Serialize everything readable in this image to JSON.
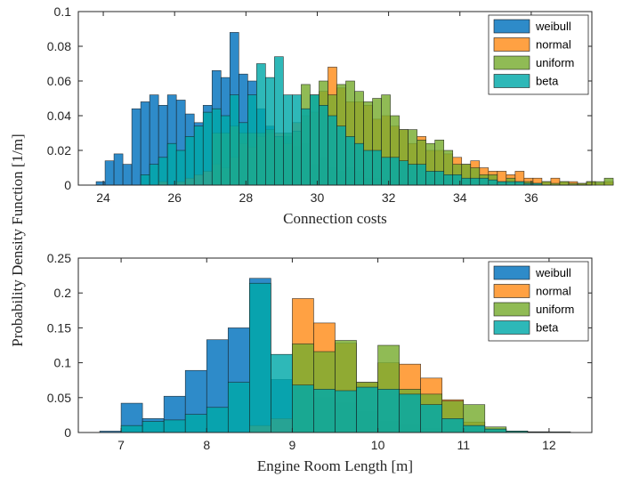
{
  "shared_ylabel": "Probability Density Function [1/m]",
  "colors": {
    "weibull": "#0072BD",
    "normal": "#FF8C1A",
    "uniform": "#77AC30",
    "beta": "#00A8A8"
  },
  "chart_data": [
    {
      "type": "bar",
      "xlabel": "Connection costs",
      "xlim": [
        23.3,
        37.7
      ],
      "ylim": [
        0,
        0.1
      ],
      "xticks": [
        24,
        26,
        28,
        30,
        32,
        34,
        36
      ],
      "yticks": [
        0,
        0.02,
        0.04,
        0.06,
        0.08,
        0.1
      ],
      "legend_position": "top-right",
      "bin_start": 23.8,
      "bin_width": 0.25,
      "series": [
        {
          "name": "weibull",
          "values": [
            0.002,
            0.014,
            0.018,
            0.012,
            0.044,
            0.048,
            0.052,
            0.046,
            0.052,
            0.049,
            0.041,
            0.036,
            0.046,
            0.066,
            0.062,
            0.088,
            0.064,
            0.06,
            0.044,
            0.034,
            0.026,
            0.028,
            0.022,
            0.024,
            0.012,
            0.016,
            0.01,
            0.008,
            0.01,
            0.008,
            0.004,
            0.004,
            0.003,
            0.002,
            0.001,
            0.002,
            0,
            0.001,
            0,
            0,
            0,
            0,
            0,
            0,
            0,
            0,
            0,
            0,
            0,
            0,
            0,
            0,
            0,
            0,
            0,
            0,
            0,
            0
          ]
        },
        {
          "name": "normal",
          "values": [
            0,
            0,
            0,
            0,
            0,
            0,
            0,
            0.002,
            0,
            0.002,
            0.004,
            0.006,
            0.008,
            0.012,
            0.01,
            0.016,
            0.024,
            0.022,
            0.028,
            0.03,
            0.03,
            0.024,
            0.036,
            0.04,
            0.042,
            0.054,
            0.068,
            0.056,
            0.048,
            0.048,
            0.046,
            0.038,
            0.04,
            0.034,
            0.032,
            0.024,
            0.028,
            0.02,
            0.02,
            0.018,
            0.016,
            0.012,
            0.014,
            0.01,
            0.008,
            0.008,
            0.006,
            0.008,
            0.004,
            0.004,
            0.002,
            0.004,
            0.002,
            0.002,
            0.001,
            0.002,
            0.001,
            0.002
          ]
        },
        {
          "name": "uniform",
          "values": [
            0,
            0,
            0,
            0,
            0,
            0,
            0,
            0,
            0,
            0,
            0,
            0,
            0,
            0.03,
            0.03,
            0.034,
            0.03,
            0.03,
            0.03,
            0.032,
            0.028,
            0.03,
            0.031,
            0.058,
            0.052,
            0.06,
            0.052,
            0.058,
            0.06,
            0.054,
            0.048,
            0.05,
            0.052,
            0.04,
            0.032,
            0.032,
            0.026,
            0.024,
            0.026,
            0.02,
            0.012,
            0.012,
            0.01,
            0.006,
            0.006,
            0.002,
            0.004,
            0.002,
            0.002,
            0.001,
            0.002,
            0.001,
            0.002,
            0.001,
            0.001,
            0.002,
            0.002,
            0.004
          ]
        },
        {
          "name": "beta",
          "values": [
            0,
            0,
            0,
            0,
            0,
            0.006,
            0.012,
            0.016,
            0.024,
            0.02,
            0.028,
            0.034,
            0.042,
            0.044,
            0.04,
            0.052,
            0.036,
            0.052,
            0.07,
            0.062,
            0.074,
            0.052,
            0.052,
            0.044,
            0.052,
            0.046,
            0.04,
            0.034,
            0.028,
            0.024,
            0.02,
            0.02,
            0.016,
            0.016,
            0.014,
            0.012,
            0.012,
            0.008,
            0.008,
            0.006,
            0.006,
            0.004,
            0.004,
            0.004,
            0.003,
            0.002,
            0.002,
            0.002,
            0.001,
            0.001,
            0,
            0,
            0,
            0,
            0,
            0,
            0,
            0
          ]
        }
      ]
    },
    {
      "type": "bar",
      "xlabel": "Engine Room Length [m]",
      "xlim": [
        6.5,
        12.5
      ],
      "ylim": [
        0,
        0.25
      ],
      "xticks": [
        7,
        8,
        9,
        10,
        11,
        12
      ],
      "yticks": [
        0,
        0.05,
        0.1,
        0.15,
        0.2,
        0.25
      ],
      "legend_position": "top-right",
      "bin_start": 6.75,
      "bin_width": 0.25,
      "series": [
        {
          "name": "weibull",
          "values": [
            0.002,
            0.042,
            0.02,
            0.052,
            0.089,
            0.133,
            0.15,
            0.221,
            0.076,
            0.068,
            0.05,
            0.042,
            0.03,
            0.016,
            0.01,
            0.006,
            0.003,
            0.002,
            0.001,
            0,
            0,
            0
          ]
        },
        {
          "name": "normal",
          "values": [
            0,
            0,
            0,
            0,
            0,
            0,
            0,
            0.01,
            0.02,
            0.192,
            0.157,
            0.128,
            0.072,
            0.1,
            0.098,
            0.078,
            0.047,
            0.015,
            0.005,
            0.002,
            0.001,
            0
          ]
        },
        {
          "name": "uniform",
          "values": [
            0,
            0,
            0,
            0,
            0,
            0,
            0,
            0,
            0,
            0.127,
            0.116,
            0.132,
            0.072,
            0.125,
            0.062,
            0.055,
            0.045,
            0.04,
            0.008,
            0.002,
            0,
            0
          ]
        },
        {
          "name": "beta",
          "values": [
            0,
            0.01,
            0.016,
            0.018,
            0.026,
            0.036,
            0.072,
            0.214,
            0.112,
            0.068,
            0.062,
            0.06,
            0.065,
            0.062,
            0.055,
            0.04,
            0.02,
            0.01,
            0.005,
            0.002,
            0.001,
            0.001
          ]
        }
      ]
    }
  ]
}
